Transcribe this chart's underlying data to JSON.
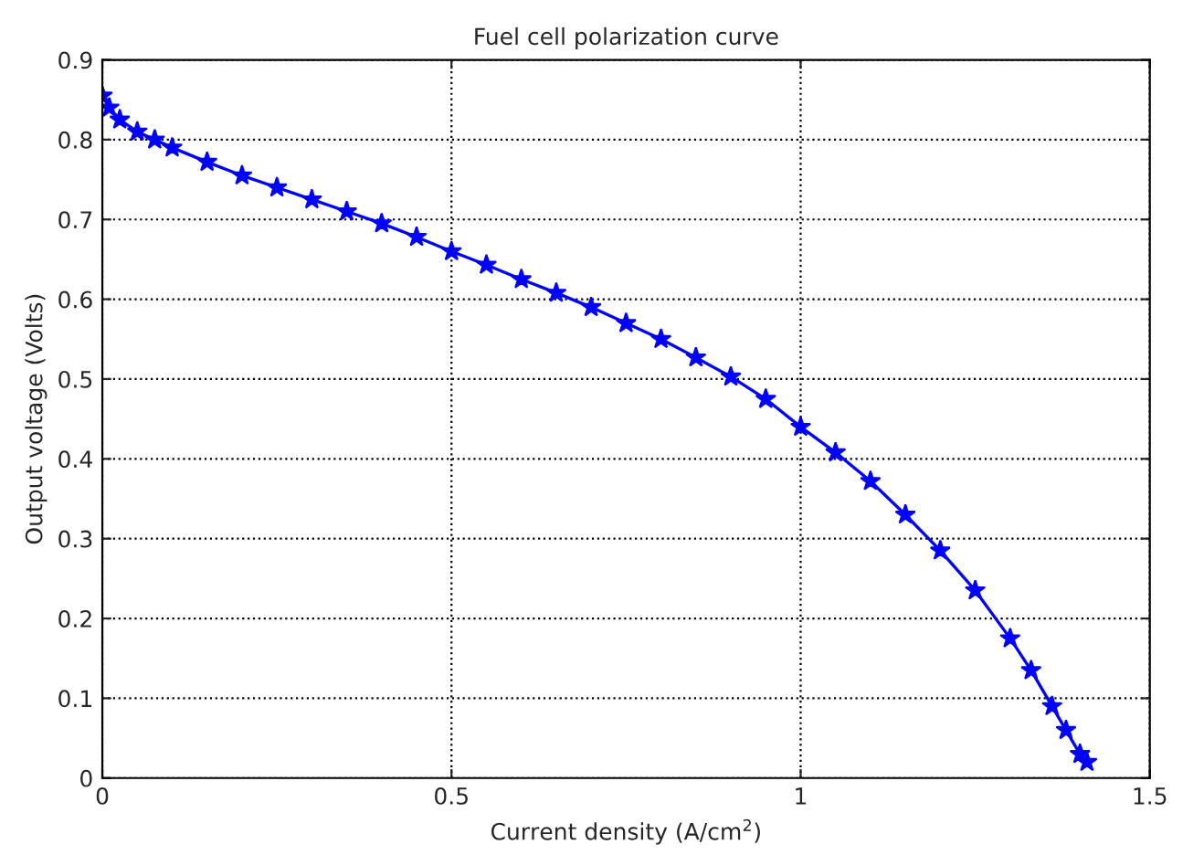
{
  "chart_data": {
    "type": "line",
    "title": "Fuel cell polarization curve",
    "xlabel": "Current density (A/cm$^{2}$)",
    "ylabel": "Output voltage (Volts)",
    "x": [
      0.0,
      0.01,
      0.025,
      0.05,
      0.075,
      0.1,
      0.15,
      0.2,
      0.25,
      0.3,
      0.35,
      0.4,
      0.45,
      0.5,
      0.55,
      0.6,
      0.65,
      0.7,
      0.75,
      0.8,
      0.85,
      0.9,
      0.95,
      1.0,
      1.05,
      1.1,
      1.15,
      1.2,
      1.25,
      1.3,
      1.33,
      1.36,
      1.38,
      1.4,
      1.41
    ],
    "series": [
      {
        "color": "#0000ff",
        "values": [
          0.855,
          0.84,
          0.825,
          0.81,
          0.8,
          0.79,
          0.772,
          0.755,
          0.74,
          0.725,
          0.71,
          0.695,
          0.678,
          0.66,
          0.643,
          0.625,
          0.608,
          0.59,
          0.57,
          0.55,
          0.527,
          0.503,
          0.475,
          0.44,
          0.408,
          0.372,
          0.33,
          0.285,
          0.235,
          0.175,
          0.135,
          0.09,
          0.06,
          0.03,
          0.02
        ]
      }
    ],
    "xlim": [
      0,
      1.5
    ],
    "xticks": [
      0,
      0.5,
      1,
      1.5
    ],
    "ylim": [
      0,
      0.9
    ],
    "yticks": [
      0,
      0.1,
      0.2,
      0.3,
      0.4,
      0.5,
      0.6,
      0.7,
      0.8,
      0.9
    ],
    "grid": true,
    "marker": "star",
    "line_style": "solid",
    "legend": false
  }
}
